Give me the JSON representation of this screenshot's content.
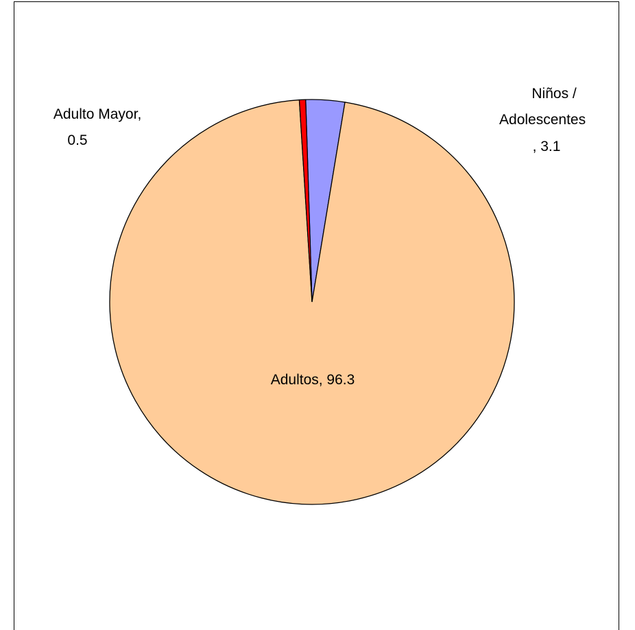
{
  "chart_data": {
    "type": "pie",
    "title": "",
    "start_angle_deg": -1.8,
    "direction": "clockwise",
    "slices": [
      {
        "name": "Niños / Adolescentes",
        "value": 3.1,
        "color": "#9999ff",
        "label_lines": [
          "Niños /",
          "Adolescentes",
          ", 3.1"
        ]
      },
      {
        "name": "Adultos",
        "value": 96.3,
        "color": "#ffcc99",
        "label_lines": [
          "Adultos, 96.3"
        ]
      },
      {
        "name": "Adulto Mayor",
        "value": 0.5,
        "color": "#ff0000",
        "label_lines": [
          "Adulto Mayor,",
          "0.5"
        ]
      }
    ],
    "legend": "none",
    "outline_color": "#000000"
  }
}
